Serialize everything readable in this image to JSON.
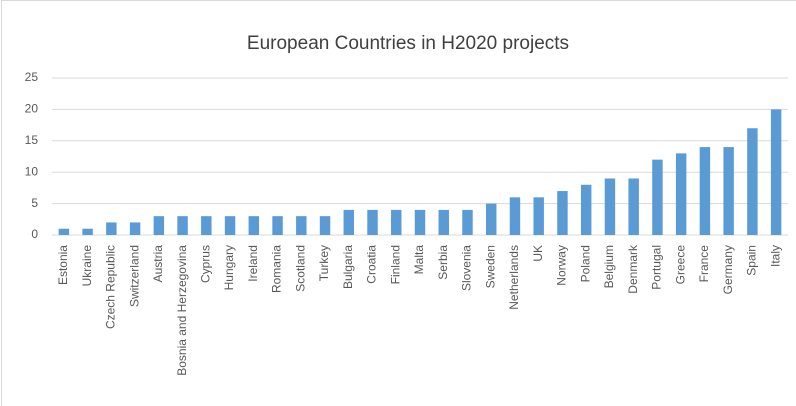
{
  "chart_data": {
    "type": "bar",
    "title": "European Countries in H2020 projects",
    "categories": [
      "Estonia",
      "Ukraine",
      "Czech Republic",
      "Switzerland",
      "Austria",
      "Bosnia and Herzegovina",
      "Cyprus",
      "Hungary",
      "Ireland",
      "Romania",
      "Scotland",
      "Turkey",
      "Bulgaria",
      "Croatia",
      "Finland",
      "Malta",
      "Serbia",
      "Slovenia",
      "Sweden",
      "Netherlands",
      "UK",
      "Norway",
      "Poland",
      "Belgium",
      "Denmark",
      "Portugal",
      "Greece",
      "France",
      "Germany",
      "Spain",
      "Italy"
    ],
    "values": [
      1,
      1,
      2,
      2,
      3,
      3,
      3,
      3,
      3,
      3,
      3,
      3,
      4,
      4,
      4,
      4,
      4,
      4,
      5,
      6,
      6,
      7,
      8,
      9,
      9,
      12,
      13,
      14,
      14,
      17,
      20
    ],
    "color": "#5b9bd5",
    "ylim": [
      0,
      25
    ],
    "yticks": [
      0,
      5,
      10,
      15,
      20,
      25
    ],
    "grid": true
  }
}
